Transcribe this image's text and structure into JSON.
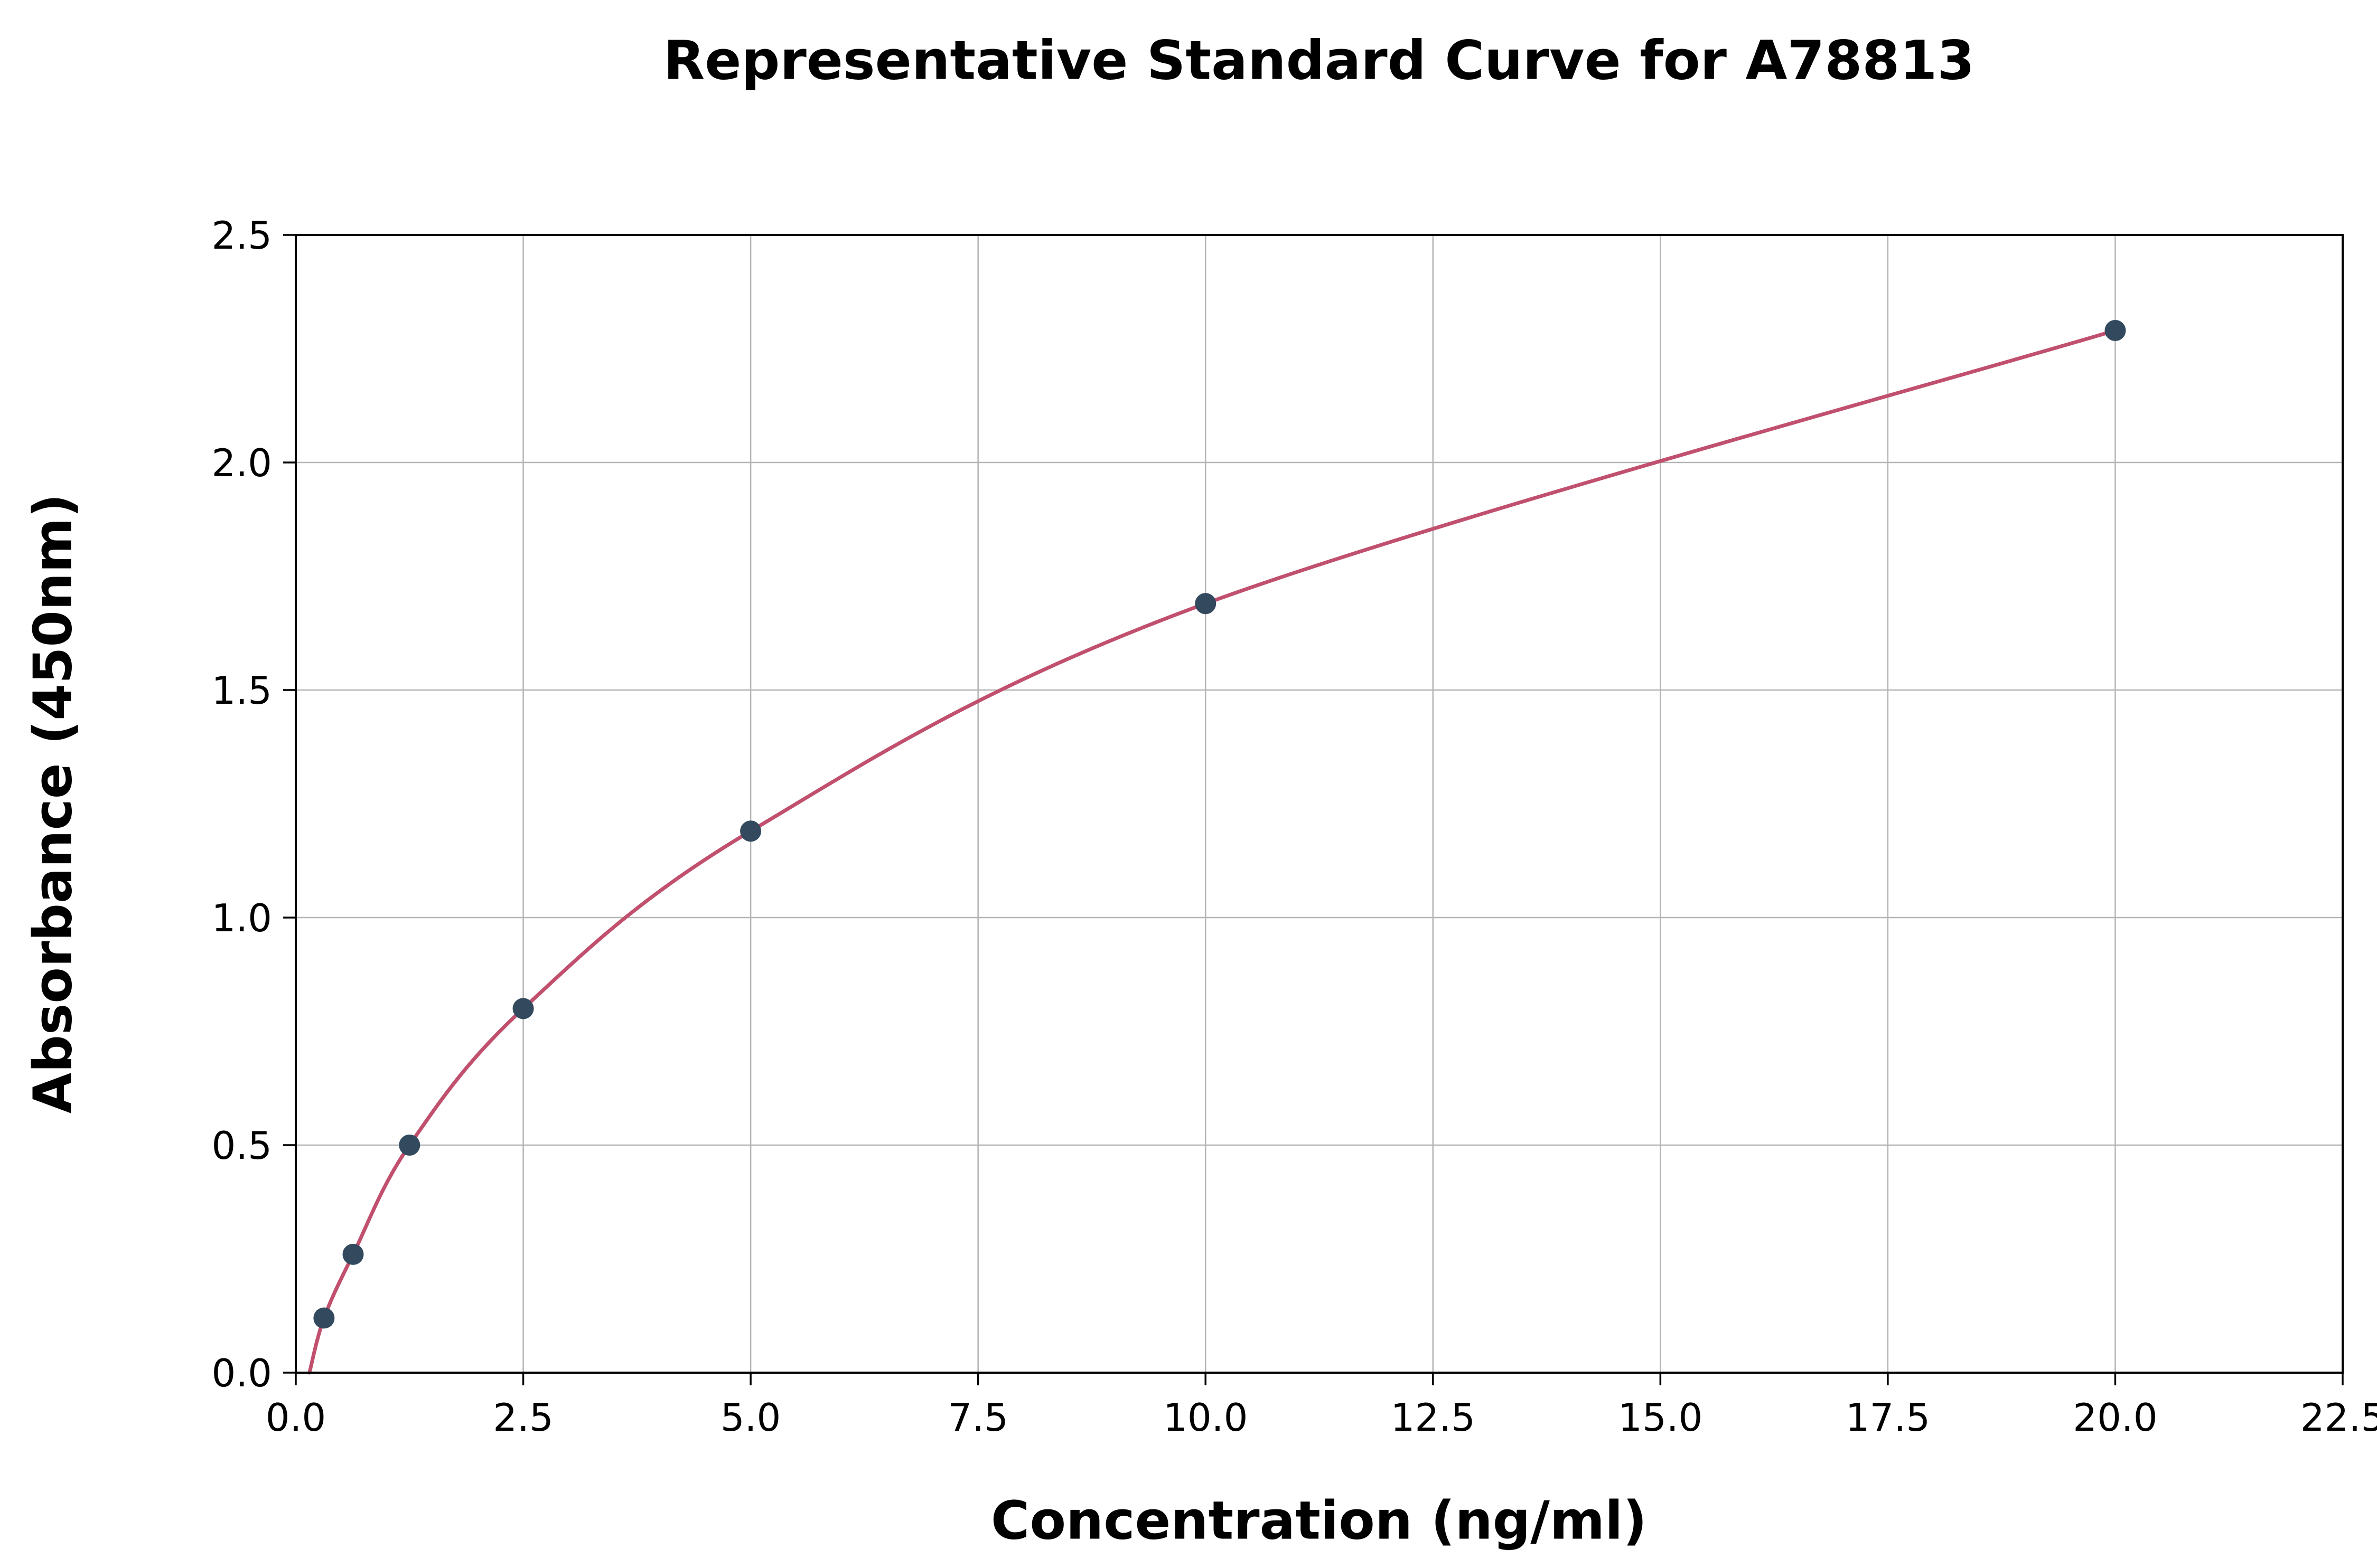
{
  "chart_data": {
    "type": "scatter",
    "title": "Representative Standard Curve for A78813",
    "xlabel": "Concentration (ng/ml)",
    "ylabel": "Absorbance (450nm)",
    "xlim": [
      0,
      22.5
    ],
    "ylim": [
      0,
      2.5
    ],
    "xticks": [
      0.0,
      2.5,
      5.0,
      7.5,
      10.0,
      12.5,
      15.0,
      17.5,
      20.0,
      22.5
    ],
    "yticks": [
      0.0,
      0.5,
      1.0,
      1.5,
      2.0,
      2.5
    ],
    "grid": true,
    "legend": "none",
    "points": {
      "x": [
        0.31,
        0.63,
        1.25,
        2.5,
        5.0,
        10.0,
        20.0
      ],
      "y": [
        0.12,
        0.26,
        0.5,
        0.8,
        1.19,
        1.69,
        2.29
      ]
    },
    "fit_curve": {
      "type": "smooth-through-points",
      "anchor": [
        0.15,
        0.0
      ]
    },
    "colors": {
      "curve": "#c0506e",
      "points": "#32495e",
      "grid": "#b4b4b4",
      "spine": "#000000"
    }
  }
}
